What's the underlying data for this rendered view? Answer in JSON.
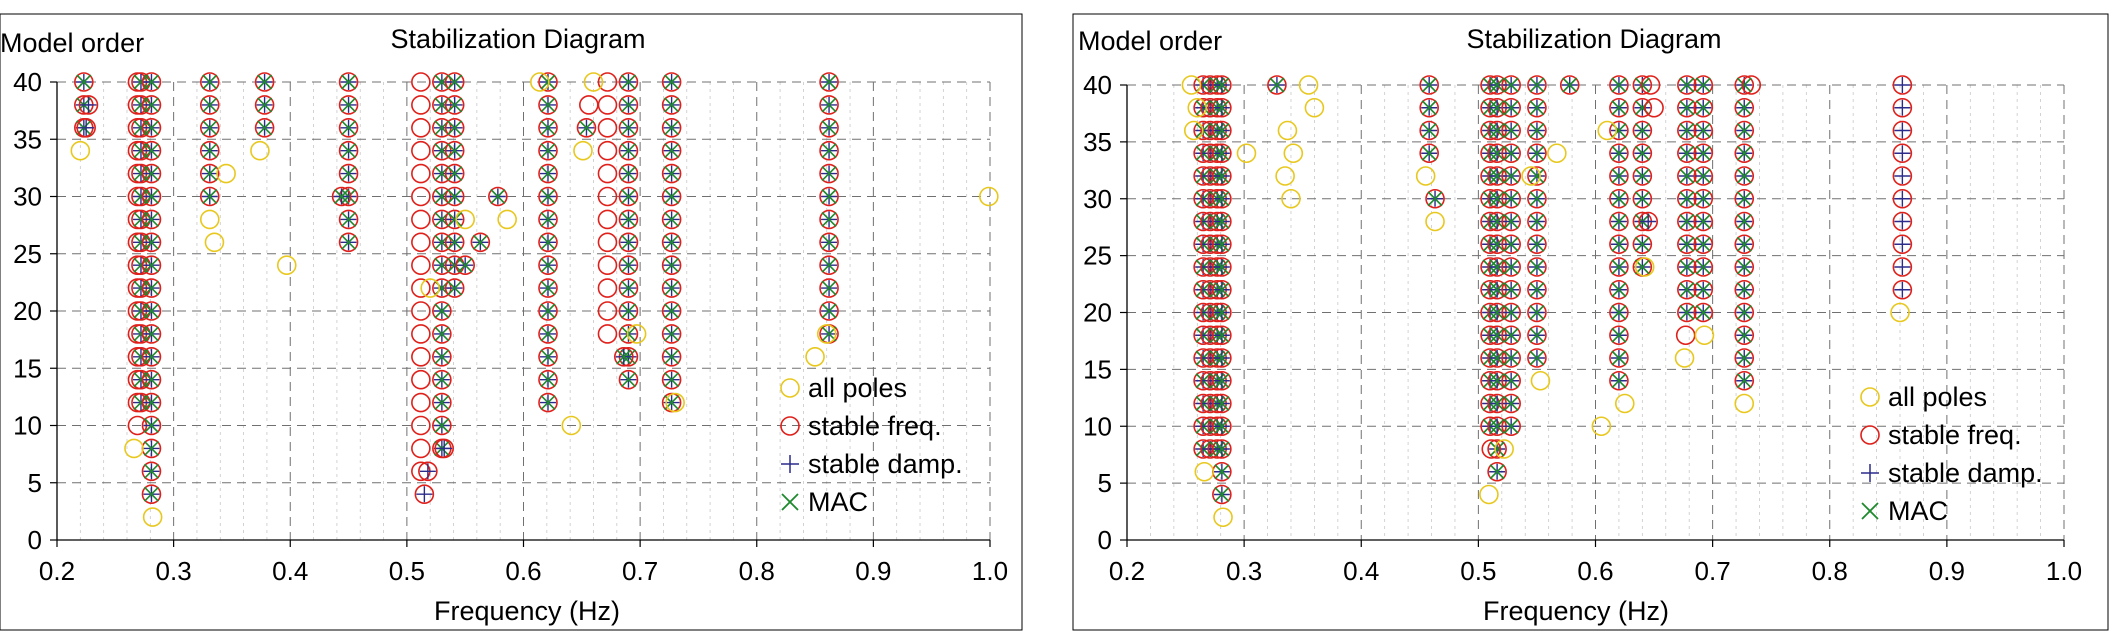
{
  "colors": {
    "all": "#e8c81e",
    "stable_freq": "#e0201a",
    "stable_damp": "#2b2b8c",
    "mac": "#1e8a2e",
    "grid": "#8c8c8c",
    "frame": "#000000"
  },
  "chart_data": [
    {
      "type": "scatter",
      "title": "Stabilization Diagram",
      "ylabel": "Model order",
      "xlabel": "Frequency (Hz)",
      "xlim": [
        0.2,
        1.0
      ],
      "ylim": [
        0,
        40
      ],
      "xticks": [
        "0.2",
        "0.3",
        "0.4",
        "0.5",
        "0.6",
        "0.7",
        "0.8",
        "0.9",
        "1.0"
      ],
      "yticks": [
        "0",
        "5",
        "10",
        "15",
        "20",
        "25",
        "30",
        "35",
        "40"
      ],
      "legend": [
        "all poles",
        "stable freq.",
        "stable damp.",
        "MAC"
      ],
      "legend_position": "bottom-right",
      "columns": [
        {
          "f": 0.223,
          "from": 36,
          "to": 40,
          "kind": "mac"
        },
        {
          "f": 0.269,
          "from": 10,
          "to": 40,
          "kind": "freq"
        },
        {
          "f": 0.272,
          "from": 12,
          "to": 40,
          "kind": "mac"
        },
        {
          "f": 0.281,
          "from": 4,
          "to": 40,
          "kind": "mac"
        },
        {
          "f": 0.331,
          "from": 30,
          "to": 40,
          "kind": "mac"
        },
        {
          "f": 0.378,
          "from": 36,
          "to": 40,
          "kind": "mac"
        },
        {
          "f": 0.45,
          "from": 26,
          "to": 40,
          "kind": "mac"
        },
        {
          "f": 0.512,
          "from": 6,
          "to": 40,
          "kind": "freq"
        },
        {
          "f": 0.53,
          "from": 8,
          "to": 40,
          "kind": "mac"
        },
        {
          "f": 0.541,
          "from": 22,
          "to": 40,
          "kind": "mac"
        },
        {
          "f": 0.621,
          "from": 12,
          "to": 40,
          "kind": "mac"
        },
        {
          "f": 0.672,
          "from": 18,
          "to": 40,
          "kind": "freq"
        },
        {
          "f": 0.69,
          "from": 14,
          "to": 40,
          "kind": "mac"
        },
        {
          "f": 0.727,
          "from": 12,
          "to": 40,
          "kind": "mac"
        },
        {
          "f": 0.862,
          "from": 18,
          "to": 40,
          "kind": "mac"
        }
      ],
      "extra_points": [
        {
          "f": 0.22,
          "order": 34,
          "kind": "all"
        },
        {
          "f": 0.227,
          "order": 38,
          "kind": "damp"
        },
        {
          "f": 0.225,
          "order": 36,
          "kind": "damp"
        },
        {
          "f": 0.266,
          "order": 8,
          "kind": "all"
        },
        {
          "f": 0.282,
          "order": 2,
          "kind": "all"
        },
        {
          "f": 0.331,
          "order": 28,
          "kind": "all"
        },
        {
          "f": 0.335,
          "order": 26,
          "kind": "all"
        },
        {
          "f": 0.345,
          "order": 32,
          "kind": "all"
        },
        {
          "f": 0.374,
          "order": 34,
          "kind": "all"
        },
        {
          "f": 0.397,
          "order": 24,
          "kind": "all"
        },
        {
          "f": 0.444,
          "order": 30,
          "kind": "mac"
        },
        {
          "f": 0.515,
          "order": 4,
          "kind": "damp"
        },
        {
          "f": 0.518,
          "order": 6,
          "kind": "damp"
        },
        {
          "f": 0.532,
          "order": 8,
          "kind": "damp"
        },
        {
          "f": 0.52,
          "order": 22,
          "kind": "all"
        },
        {
          "f": 0.55,
          "order": 28,
          "kind": "all"
        },
        {
          "f": 0.55,
          "order": 24,
          "kind": "mac"
        },
        {
          "f": 0.563,
          "order": 26,
          "kind": "mac"
        },
        {
          "f": 0.578,
          "order": 30,
          "kind": "mac"
        },
        {
          "f": 0.586,
          "order": 28,
          "kind": "all"
        },
        {
          "f": 0.614,
          "order": 40,
          "kind": "all"
        },
        {
          "f": 0.641,
          "order": 10,
          "kind": "all"
        },
        {
          "f": 0.651,
          "order": 34,
          "kind": "all"
        },
        {
          "f": 0.654,
          "order": 36,
          "kind": "mac"
        },
        {
          "f": 0.656,
          "order": 38,
          "kind": "freq"
        },
        {
          "f": 0.66,
          "order": 40,
          "kind": "all"
        },
        {
          "f": 0.686,
          "order": 16,
          "kind": "mac"
        },
        {
          "f": 0.697,
          "order": 18,
          "kind": "all"
        },
        {
          "f": 0.73,
          "order": 12,
          "kind": "all"
        },
        {
          "f": 0.85,
          "order": 16,
          "kind": "all"
        },
        {
          "f": 0.86,
          "order": 18,
          "kind": "all"
        },
        {
          "f": 0.999,
          "order": 30,
          "kind": "all"
        }
      ]
    },
    {
      "type": "scatter",
      "title": "Stabilization Diagram",
      "ylabel": "Model order",
      "xlabel": "Frequency (Hz)",
      "xlim": [
        0.2,
        1.0
      ],
      "ylim": [
        0,
        40
      ],
      "xticks": [
        "0.2",
        "0.3",
        "0.4",
        "0.5",
        "0.6",
        "0.7",
        "0.8",
        "0.9",
        "1.0"
      ],
      "yticks": [
        "0",
        "5",
        "10",
        "15",
        "20",
        "25",
        "30",
        "35",
        "40"
      ],
      "legend": [
        "all poles",
        "stable freq.",
        "stable damp.",
        "MAC"
      ],
      "legend_position": "bottom-right",
      "columns": [
        {
          "f": 0.265,
          "from": 8,
          "to": 40,
          "kind": "mac"
        },
        {
          "f": 0.271,
          "from": 8,
          "to": 40,
          "kind": "damp"
        },
        {
          "f": 0.277,
          "from": 8,
          "to": 40,
          "kind": "mac"
        },
        {
          "f": 0.281,
          "from": 4,
          "to": 40,
          "kind": "mac"
        },
        {
          "f": 0.458,
          "from": 34,
          "to": 40,
          "kind": "mac"
        },
        {
          "f": 0.51,
          "from": 10,
          "to": 40,
          "kind": "mac"
        },
        {
          "f": 0.516,
          "from": 6,
          "to": 40,
          "kind": "mac"
        },
        {
          "f": 0.528,
          "from": 10,
          "to": 40,
          "kind": "mac"
        },
        {
          "f": 0.55,
          "from": 16,
          "to": 40,
          "kind": "mac"
        },
        {
          "f": 0.62,
          "from": 14,
          "to": 40,
          "kind": "mac"
        },
        {
          "f": 0.64,
          "from": 24,
          "to": 40,
          "kind": "mac"
        },
        {
          "f": 0.678,
          "from": 20,
          "to": 40,
          "kind": "mac"
        },
        {
          "f": 0.692,
          "from": 20,
          "to": 40,
          "kind": "mac"
        },
        {
          "f": 0.727,
          "from": 14,
          "to": 40,
          "kind": "mac"
        },
        {
          "f": 0.862,
          "from": 22,
          "to": 40,
          "kind": "damp"
        }
      ],
      "extra_points": [
        {
          "f": 0.255,
          "order": 40,
          "kind": "all"
        },
        {
          "f": 0.257,
          "order": 36,
          "kind": "all"
        },
        {
          "f": 0.26,
          "order": 38,
          "kind": "all"
        },
        {
          "f": 0.266,
          "order": 6,
          "kind": "all"
        },
        {
          "f": 0.282,
          "order": 2,
          "kind": "all"
        },
        {
          "f": 0.302,
          "order": 34,
          "kind": "all"
        },
        {
          "f": 0.328,
          "order": 40,
          "kind": "mac"
        },
        {
          "f": 0.335,
          "order": 32,
          "kind": "all"
        },
        {
          "f": 0.337,
          "order": 36,
          "kind": "all"
        },
        {
          "f": 0.34,
          "order": 30,
          "kind": "all"
        },
        {
          "f": 0.342,
          "order": 34,
          "kind": "all"
        },
        {
          "f": 0.355,
          "order": 40,
          "kind": "all"
        },
        {
          "f": 0.36,
          "order": 38,
          "kind": "all"
        },
        {
          "f": 0.455,
          "order": 32,
          "kind": "all"
        },
        {
          "f": 0.463,
          "order": 30,
          "kind": "mac"
        },
        {
          "f": 0.463,
          "order": 28,
          "kind": "all"
        },
        {
          "f": 0.509,
          "order": 4,
          "kind": "all"
        },
        {
          "f": 0.511,
          "order": 8,
          "kind": "freq"
        },
        {
          "f": 0.522,
          "order": 8,
          "kind": "all"
        },
        {
          "f": 0.545,
          "order": 32,
          "kind": "all"
        },
        {
          "f": 0.553,
          "order": 14,
          "kind": "all"
        },
        {
          "f": 0.567,
          "order": 34,
          "kind": "all"
        },
        {
          "f": 0.578,
          "order": 40,
          "kind": "mac"
        },
        {
          "f": 0.605,
          "order": 10,
          "kind": "all"
        },
        {
          "f": 0.61,
          "order": 36,
          "kind": "all"
        },
        {
          "f": 0.625,
          "order": 12,
          "kind": "all"
        },
        {
          "f": 0.642,
          "order": 24,
          "kind": "all"
        },
        {
          "f": 0.645,
          "order": 28,
          "kind": "damp"
        },
        {
          "f": 0.647,
          "order": 40,
          "kind": "freq"
        },
        {
          "f": 0.65,
          "order": 38,
          "kind": "freq"
        },
        {
          "f": 0.676,
          "order": 16,
          "kind": "all"
        },
        {
          "f": 0.677,
          "order": 18,
          "kind": "freq"
        },
        {
          "f": 0.693,
          "order": 18,
          "kind": "all"
        },
        {
          "f": 0.727,
          "order": 12,
          "kind": "all"
        },
        {
          "f": 0.733,
          "order": 40,
          "kind": "freq"
        },
        {
          "f": 0.86,
          "order": 20,
          "kind": "all"
        }
      ]
    }
  ]
}
